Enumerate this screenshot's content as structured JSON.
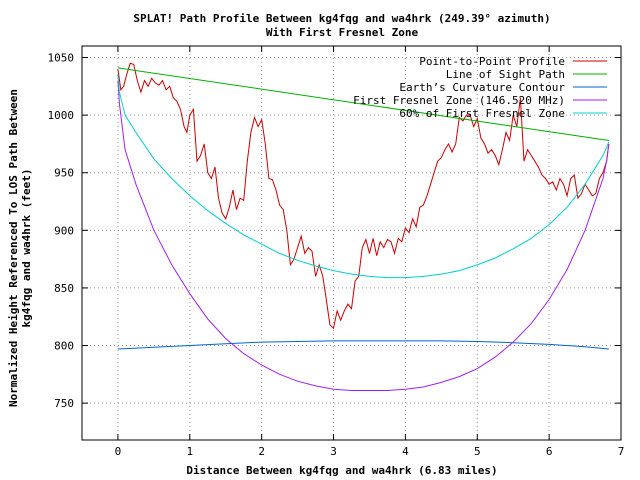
{
  "chart_data": {
    "type": "line",
    "title_lines": [
      "SPLAT! Path Profile Between kg4fqg and wa4hrk (249.39° azimuth)",
      "With First Fresnel Zone"
    ],
    "xlabel": "Distance Between kg4fqg and wa4hrk (6.83 miles)",
    "ylabel_lines": [
      "Normalized Height Referenced To LOS Path Between",
      "kg4fqg and wa4hrk (feet)"
    ],
    "xlim": [
      -0.5,
      7
    ],
    "ylim": [
      718,
      1060
    ],
    "xticks": [
      0,
      1,
      2,
      3,
      4,
      5,
      6,
      7
    ],
    "yticks": [
      750,
      800,
      850,
      900,
      950,
      1000,
      1050
    ],
    "grid": true,
    "legend_position": "top-right",
    "series": [
      {
        "name": "Point-to-Point Profile",
        "color": "#cc0000",
        "x": [
          0,
          0.04,
          0.08,
          0.12,
          0.17,
          0.22,
          0.27,
          0.32,
          0.37,
          0.42,
          0.47,
          0.52,
          0.57,
          0.62,
          0.67,
          0.72,
          0.77,
          0.82,
          0.87,
          0.92,
          0.96,
          1.0,
          1.05,
          1.1,
          1.15,
          1.2,
          1.25,
          1.3,
          1.35,
          1.4,
          1.45,
          1.5,
          1.55,
          1.6,
          1.65,
          1.7,
          1.75,
          1.8,
          1.85,
          1.9,
          1.95,
          2.0,
          2.05,
          2.1,
          2.15,
          2.2,
          2.25,
          2.3,
          2.35,
          2.4,
          2.45,
          2.5,
          2.55,
          2.6,
          2.65,
          2.7,
          2.75,
          2.8,
          2.85,
          2.9,
          2.95,
          3.0,
          3.05,
          3.1,
          3.15,
          3.2,
          3.25,
          3.3,
          3.35,
          3.4,
          3.45,
          3.5,
          3.55,
          3.6,
          3.65,
          3.7,
          3.75,
          3.8,
          3.85,
          3.9,
          3.95,
          4.0,
          4.05,
          4.1,
          4.15,
          4.2,
          4.25,
          4.3,
          4.35,
          4.4,
          4.45,
          4.5,
          4.55,
          4.6,
          4.65,
          4.7,
          4.75,
          4.8,
          4.85,
          4.9,
          4.95,
          5.0,
          5.05,
          5.1,
          5.15,
          5.2,
          5.25,
          5.3,
          5.35,
          5.4,
          5.45,
          5.5,
          5.55,
          5.6,
          5.65,
          5.7,
          5.75,
          5.8,
          5.85,
          5.9,
          5.95,
          6.0,
          6.05,
          6.1,
          6.15,
          6.2,
          6.25,
          6.3,
          6.35,
          6.4,
          6.45,
          6.5,
          6.55,
          6.6,
          6.65,
          6.7,
          6.75,
          6.8,
          6.83
        ],
        "y": [
          1040,
          1022,
          1025,
          1035,
          1045,
          1044,
          1030,
          1020,
          1030,
          1025,
          1032,
          1028,
          1026,
          1030,
          1022,
          1025,
          1015,
          1012,
          1005,
          990,
          985,
          1000,
          1005,
          960,
          965,
          975,
          950,
          945,
          955,
          928,
          915,
          910,
          920,
          935,
          918,
          928,
          926,
          960,
          985,
          998,
          990,
          996,
          975,
          945,
          944,
          935,
          922,
          918,
          900,
          870,
          875,
          885,
          895,
          880,
          885,
          882,
          860,
          870,
          860,
          840,
          818,
          815,
          830,
          822,
          830,
          836,
          832,
          856,
          860,
          885,
          892,
          880,
          893,
          878,
          890,
          885,
          892,
          890,
          880,
          893,
          890,
          902,
          898,
          910,
          903,
          920,
          922,
          930,
          940,
          950,
          960,
          963,
          970,
          975,
          968,
          975,
          998,
          995,
          1000,
          1000,
          990,
          997,
          980,
          975,
          967,
          970,
          965,
          957,
          970,
          985,
          978,
          1000,
          990,
          1015,
          960,
          970,
          965,
          960,
          955,
          948,
          945,
          940,
          942,
          935,
          945,
          940,
          930,
          945,
          948,
          928,
          932,
          940,
          935,
          930,
          932,
          945,
          950,
          960,
          975
        ]
      },
      {
        "name": "Line of Sight Path",
        "color": "#00b000",
        "x": [
          0,
          6.83
        ],
        "y": [
          1041,
          978
        ]
      },
      {
        "name": "Earth’s Curvature Contour",
        "color": "#0066cc",
        "x": [
          0,
          0.5,
          1,
          1.5,
          2,
          2.5,
          3,
          3.5,
          4,
          4.5,
          5,
          5.5,
          6,
          6.5,
          6.83
        ],
        "y": [
          797,
          798.5,
          800,
          801.5,
          803,
          803.5,
          804,
          804,
          804,
          804,
          803.5,
          802.5,
          801,
          799,
          797
        ]
      },
      {
        "name": "First Fresnel Zone (146.520 MHz)",
        "color": "#a020f0",
        "x": [
          0,
          0.02,
          0.1,
          0.25,
          0.5,
          0.75,
          1.0,
          1.25,
          1.5,
          1.75,
          2.0,
          2.25,
          2.5,
          2.75,
          3.0,
          3.25,
          3.5,
          3.75,
          4.0,
          4.25,
          4.5,
          4.75,
          5.0,
          5.25,
          5.5,
          5.75,
          6.0,
          6.25,
          6.5,
          6.75,
          6.8,
          6.83
        ],
        "y": [
          1030,
          1010,
          970,
          940,
          900,
          870,
          845,
          823,
          806,
          793,
          783,
          775,
          769,
          765,
          762,
          761,
          761,
          761,
          762,
          764,
          768,
          773,
          780,
          790,
          803,
          819,
          840,
          866,
          900,
          945,
          960,
          975
        ]
      },
      {
        "name": "60% of First Fresnel Zone",
        "color": "#00d0d0",
        "x": [
          0,
          0.02,
          0.1,
          0.25,
          0.5,
          0.75,
          1.0,
          1.25,
          1.5,
          1.75,
          2.0,
          2.25,
          2.5,
          2.75,
          3.0,
          3.25,
          3.5,
          3.75,
          4.0,
          4.25,
          4.5,
          4.75,
          5.0,
          5.25,
          5.5,
          5.75,
          6.0,
          6.25,
          6.5,
          6.75,
          6.8,
          6.83
        ],
        "y": [
          1035,
          1020,
          1000,
          985,
          962,
          945,
          930,
          917,
          906,
          896,
          888,
          880,
          874,
          869,
          865,
          862,
          860,
          859,
          859,
          860,
          862,
          865,
          870,
          876,
          884,
          893,
          905,
          920,
          940,
          965,
          972,
          977
        ]
      }
    ]
  }
}
